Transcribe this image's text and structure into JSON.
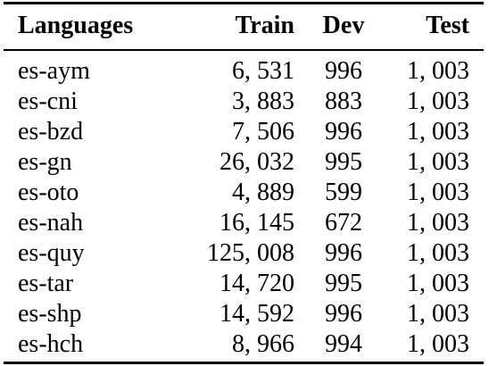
{
  "table": {
    "headers": {
      "languages": "Languages",
      "train": "Train",
      "dev": "Dev",
      "test": "Test"
    },
    "rows": [
      {
        "language": "es-aym",
        "train": "6, 531",
        "dev": "996",
        "test": "1, 003"
      },
      {
        "language": "es-cni",
        "train": "3, 883",
        "dev": "883",
        "test": "1, 003"
      },
      {
        "language": "es-bzd",
        "train": "7, 506",
        "dev": "996",
        "test": "1, 003"
      },
      {
        "language": "es-gn",
        "train": "26, 032",
        "dev": "995",
        "test": "1, 003"
      },
      {
        "language": "es-oto",
        "train": "4, 889",
        "dev": "599",
        "test": "1, 003"
      },
      {
        "language": "es-nah",
        "train": "16, 145",
        "dev": "672",
        "test": "1, 003"
      },
      {
        "language": "es-quy",
        "train": "125, 008",
        "dev": "996",
        "test": "1, 003"
      },
      {
        "language": "es-tar",
        "train": "14, 720",
        "dev": "995",
        "test": "1, 003"
      },
      {
        "language": "es-shp",
        "train": "14, 592",
        "dev": "996",
        "test": "1, 003"
      },
      {
        "language": "es-hch",
        "train": "8, 966",
        "dev": "994",
        "test": "1, 003"
      }
    ]
  }
}
